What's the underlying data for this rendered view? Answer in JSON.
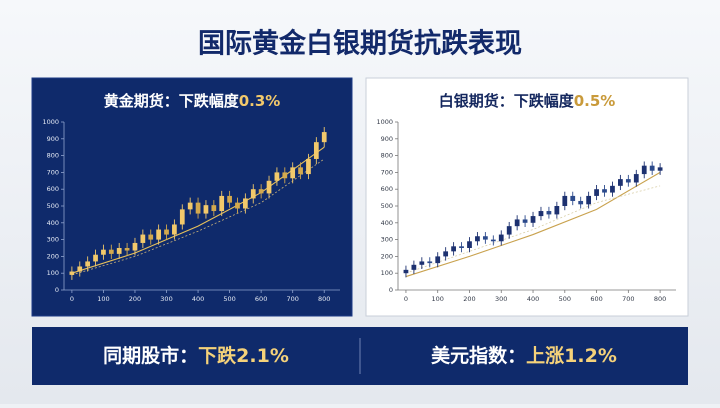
{
  "title": "国际黄金白银期货抗跌表现",
  "chart_data": [
    {
      "type": "candlestick",
      "title": "黄金期货：下跌幅度",
      "title_highlight": "0.3%",
      "x": [
        0,
        25,
        50,
        75,
        100,
        125,
        150,
        175,
        200,
        225,
        250,
        275,
        300,
        325,
        350,
        375,
        400,
        425,
        450,
        475,
        500,
        525,
        550,
        575,
        600,
        625,
        650,
        675,
        700,
        725,
        750,
        775,
        800
      ],
      "open": [
        90,
        110,
        140,
        170,
        210,
        240,
        215,
        250,
        235,
        280,
        330,
        300,
        360,
        330,
        390,
        480,
        520,
        455,
        505,
        470,
        560,
        520,
        485,
        545,
        600,
        575,
        650,
        700,
        665,
        730,
        690,
        780,
        880
      ],
      "high": [
        140,
        170,
        200,
        240,
        270,
        270,
        280,
        280,
        310,
        360,
        360,
        390,
        390,
        420,
        510,
        550,
        550,
        535,
        535,
        590,
        590,
        550,
        575,
        630,
        630,
        680,
        730,
        730,
        760,
        760,
        810,
        910,
        970
      ],
      "low": [
        60,
        80,
        110,
        140,
        180,
        185,
        185,
        205,
        205,
        250,
        270,
        270,
        300,
        300,
        360,
        450,
        425,
        425,
        440,
        440,
        490,
        455,
        455,
        515,
        545,
        545,
        620,
        635,
        635,
        660,
        660,
        750,
        850
      ],
      "close": [
        110,
        140,
        170,
        210,
        240,
        215,
        250,
        235,
        280,
        330,
        300,
        360,
        330,
        390,
        480,
        520,
        455,
        505,
        470,
        560,
        520,
        485,
        545,
        600,
        575,
        650,
        700,
        665,
        730,
        690,
        780,
        880,
        940
      ],
      "color": "#f2c96b",
      "down_color": "#d3a94e",
      "lines": [
        {
          "x": [
            0,
            200,
            400,
            600,
            800
          ],
          "values": [
            100,
            220,
            380,
            580,
            850
          ],
          "color": "#e8c15a",
          "dashed": false
        },
        {
          "x": [
            0,
            200,
            400,
            600,
            800
          ],
          "values": [
            90,
            200,
            350,
            520,
            780
          ],
          "color": "#c9b27a",
          "dashed": true
        }
      ],
      "xlim": [
        -25,
        850
      ],
      "ylim": [
        0,
        1000
      ],
      "xticks": [
        0,
        100,
        200,
        300,
        400,
        500,
        600,
        700,
        800
      ],
      "yticks": [
        0,
        100,
        200,
        300,
        400,
        500,
        600,
        700,
        800,
        900,
        1000
      ]
    },
    {
      "type": "candlestick",
      "title": "白银期货：下跌幅度",
      "title_highlight": "0.5%",
      "x": [
        0,
        25,
        50,
        75,
        100,
        125,
        150,
        175,
        200,
        225,
        250,
        275,
        300,
        325,
        350,
        375,
        400,
        425,
        450,
        475,
        500,
        525,
        550,
        575,
        600,
        625,
        650,
        675,
        700,
        725,
        750,
        775,
        800
      ],
      "open": [
        100,
        120,
        150,
        170,
        160,
        200,
        230,
        260,
        250,
        290,
        320,
        300,
        290,
        330,
        380,
        420,
        400,
        440,
        470,
        450,
        500,
        560,
        530,
        510,
        560,
        600,
        580,
        620,
        660,
        640,
        690,
        740,
        710
      ],
      "high": [
        145,
        175,
        195,
        195,
        225,
        255,
        285,
        285,
        315,
        345,
        345,
        325,
        355,
        405,
        445,
        445,
        465,
        495,
        495,
        525,
        585,
        585,
        555,
        585,
        625,
        625,
        645,
        685,
        685,
        715,
        765,
        765,
        755
      ],
      "low": [
        75,
        95,
        125,
        135,
        135,
        175,
        205,
        225,
        225,
        265,
        275,
        265,
        265,
        305,
        355,
        375,
        375,
        415,
        425,
        425,
        475,
        505,
        485,
        485,
        535,
        555,
        555,
        595,
        615,
        615,
        665,
        685,
        685
      ],
      "close": [
        120,
        150,
        170,
        160,
        200,
        230,
        260,
        250,
        290,
        320,
        300,
        290,
        330,
        380,
        420,
        400,
        440,
        470,
        450,
        500,
        560,
        530,
        510,
        560,
        600,
        580,
        620,
        660,
        640,
        690,
        740,
        710,
        730
      ],
      "color": "#1d3170",
      "down_color": "#2c4a8c",
      "lines": [
        {
          "x": [
            0,
            200,
            400,
            600,
            800
          ],
          "values": [
            80,
            200,
            330,
            480,
            700
          ],
          "color": "#c9a24e",
          "dashed": false
        },
        {
          "x": [
            0,
            200,
            400,
            600,
            800
          ],
          "values": [
            100,
            230,
            360,
            520,
            620
          ],
          "color": "#d9cfa8",
          "dashed": true
        }
      ],
      "xlim": [
        -25,
        850
      ],
      "ylim": [
        0,
        1000
      ],
      "xticks": [
        0,
        100,
        200,
        300,
        400,
        500,
        600,
        700,
        800
      ],
      "yticks": [
        0,
        100,
        200,
        300,
        400,
        500,
        600,
        700,
        800,
        900,
        1000
      ]
    }
  ],
  "stats": [
    {
      "label": "同期股市：",
      "value": "下跌2.1%"
    },
    {
      "label": "美元指数：",
      "value": "上涨1.2%"
    }
  ]
}
